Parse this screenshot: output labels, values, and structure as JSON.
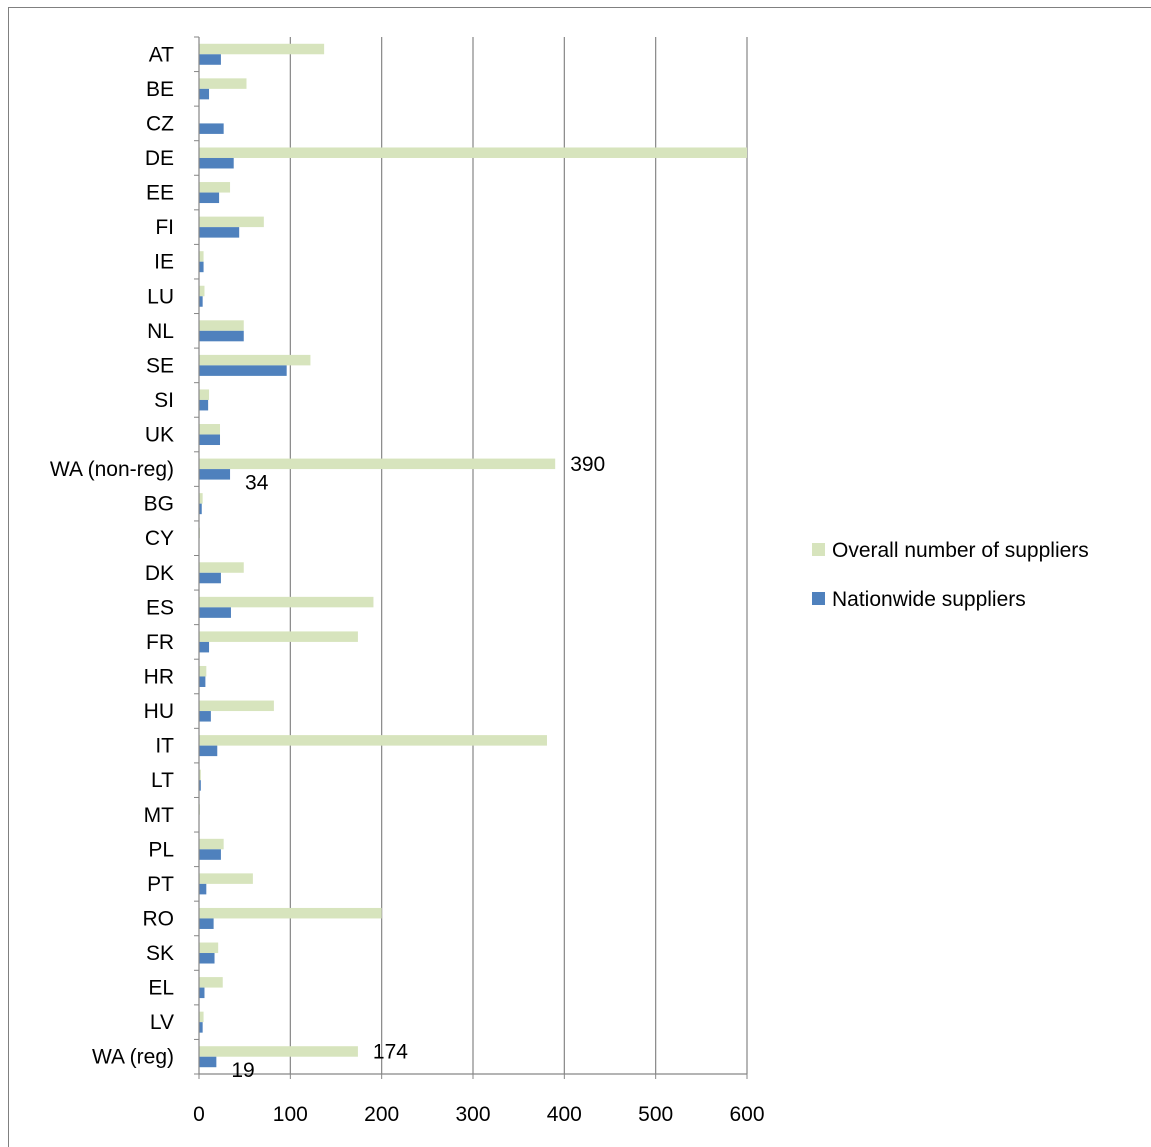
{
  "chart_data": {
    "type": "bar",
    "orientation": "horizontal",
    "categories": [
      "AT",
      "BE",
      "CZ",
      "DE",
      "EE",
      "FI",
      "IE",
      "LU",
      "NL",
      "SE",
      "SI",
      "UK",
      "WA (non-reg)",
      "BG",
      "CY",
      "DK",
      "ES",
      "FR",
      "HR",
      "HU",
      "IT",
      "LT",
      "MT",
      "PL",
      "PT",
      "RO",
      "SK",
      "EL",
      "LV",
      "WA (reg)"
    ],
    "series": [
      {
        "name": "Overall number of suppliers",
        "color": "#d7e4bd",
        "values": [
          137,
          52,
          0,
          600,
          34,
          71,
          5,
          6,
          49,
          122,
          11,
          23,
          390,
          4,
          1,
          49,
          191,
          174,
          8,
          82,
          381,
          2,
          1,
          27,
          59,
          200,
          21,
          26,
          5,
          174
        ]
      },
      {
        "name": "Nationwide suppliers",
        "color": "#4f81bd",
        "values": [
          24,
          11,
          27,
          38,
          22,
          44,
          5,
          4,
          49,
          96,
          10,
          23,
          34,
          3,
          0,
          24,
          35,
          11,
          7,
          13,
          20,
          2,
          0,
          24,
          8,
          16,
          17,
          6,
          4,
          19
        ]
      }
    ],
    "data_labels": [
      {
        "category": "WA (non-reg)",
        "series": "Overall number of suppliers",
        "text": "390"
      },
      {
        "category": "WA (non-reg)",
        "series": "Nationwide suppliers",
        "text": "34"
      },
      {
        "category": "WA (reg)",
        "series": "Overall number of suppliers",
        "text": "174"
      },
      {
        "category": "WA (reg)",
        "series": "Nationwide suppliers",
        "text": "19"
      }
    ],
    "xlim": [
      0,
      600
    ],
    "xticks": [
      "0",
      "100",
      "200",
      "300",
      "400",
      "500",
      "600"
    ],
    "xtick_values": [
      0,
      100,
      200,
      300,
      400,
      500,
      600
    ],
    "grid": true,
    "legend_position": "right",
    "title": "",
    "xlabel": "",
    "ylabel": ""
  }
}
